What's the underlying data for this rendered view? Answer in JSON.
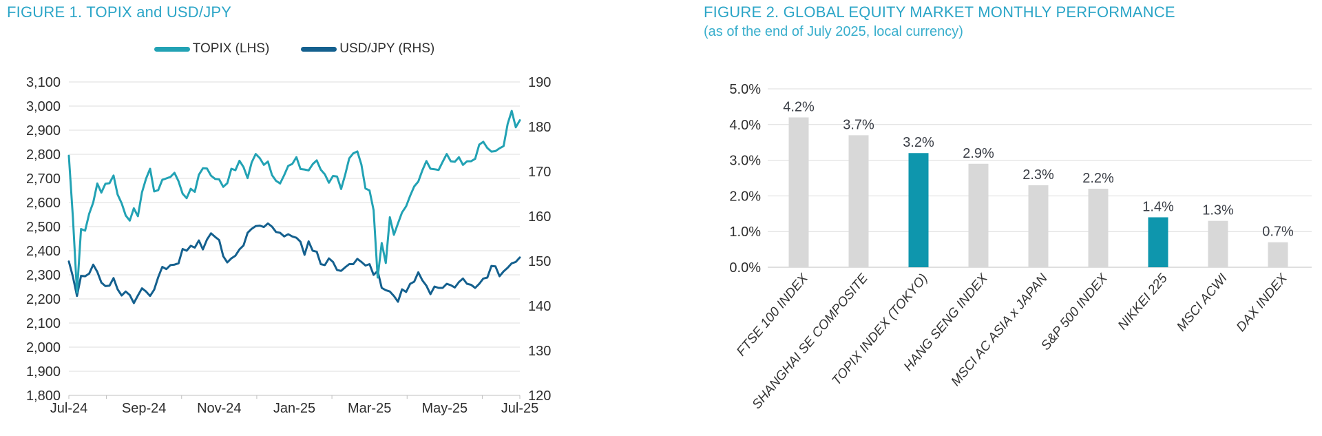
{
  "figure1": {
    "title": "FIGURE 1. TOPIX and USD/JPY",
    "legend": [
      {
        "label": "TOPIX (LHS)",
        "color": "#22A2B4"
      },
      {
        "label": "USD/JPY (RHS)",
        "color": "#14608E"
      }
    ]
  },
  "figure2": {
    "title": "FIGURE 2. GLOBAL EQUITY MARKET MONTHLY PERFORMANCE",
    "subtitle": "(as of the end of July 2025, local currency)"
  },
  "colors": {
    "title_teal": "#2BA5C7",
    "subtitle_teal": "#38AECC",
    "gridline": "#DCDCDC",
    "axis_line": "#BFBFBF",
    "axis_text": "#2E2E2E",
    "data_label_text": "#3A3E46",
    "topix_line": "#22A2B4",
    "usdjpy_line": "#14608E",
    "bar_gray": "#D8D8D8",
    "bar_teal": "#0E96AD"
  },
  "chart_data": [
    {
      "type": "line",
      "title": "FIGURE 1. TOPIX and USD/JPY",
      "legend_position": "top",
      "grid": true,
      "x_tick_labels": [
        "Jul-24",
        "Sep-24",
        "Nov-24",
        "Jan-25",
        "Mar-25",
        "May-25",
        "Jul-25"
      ],
      "y_left_axis": {
        "min": 1800,
        "max": 3100,
        "step": 100,
        "tick_labels": [
          "1,800",
          "1,900",
          "2,000",
          "2,100",
          "2,200",
          "2,300",
          "2,400",
          "2,500",
          "2,600",
          "2,700",
          "2,800",
          "2,900",
          "3,000",
          "3,100"
        ]
      },
      "y_right_axis": {
        "min": 120,
        "max": 190,
        "step": 10,
        "tick_labels": [
          "120",
          "130",
          "140",
          "150",
          "160",
          "170",
          "180",
          "190"
        ]
      },
      "series": [
        {
          "name": "USD/JPY (RHS)",
          "axis": "right",
          "color": "#14608E",
          "values": [
            149.9,
            146.5,
            142.2,
            146.7,
            146.6,
            147.2,
            149.2,
            147.6,
            145.2,
            144.4,
            144.5,
            146.2,
            143.7,
            142.3,
            143.2,
            142.4,
            140.6,
            142.3,
            143.9,
            143.2,
            142.2,
            143.6,
            146.4,
            148.7,
            148.2,
            149.1,
            149.2,
            149.5,
            152.7,
            152.3,
            153.4,
            153.0,
            154.6,
            152.6,
            154.8,
            156.2,
            155.4,
            154.7,
            151.1,
            149.7,
            150.6,
            151.2,
            152.6,
            153.5,
            156.3,
            157.2,
            157.8,
            157.9,
            157.6,
            158.4,
            157.7,
            156.5,
            156.3,
            155.5,
            156.0,
            155.5,
            155.2,
            154.3,
            151.4,
            154.4,
            152.3,
            152.1,
            149.3,
            149.1,
            150.6,
            149.8,
            148.0,
            147.8,
            148.6,
            149.3,
            149.3,
            150.5,
            149.8,
            149.0,
            149.3,
            146.9,
            147.8,
            144.0,
            143.5,
            143.2,
            142.2,
            140.9,
            143.7,
            143.1,
            144.9,
            145.4,
            147.5,
            145.7,
            144.5,
            142.6,
            144.3,
            144.0,
            144.0,
            144.9,
            144.6,
            144.1,
            145.3,
            146.1,
            144.9,
            144.7,
            144.0,
            144.9,
            146.1,
            146.3,
            148.9,
            148.8,
            146.6,
            147.7,
            148.5,
            149.5,
            149.8,
            150.8
          ]
        },
        {
          "name": "TOPIX (LHS)",
          "axis": "left",
          "color": "#22A2B4",
          "values": [
            2794,
            2537,
            2227,
            2490,
            2483,
            2553,
            2600,
            2679,
            2641,
            2678,
            2680,
            2712,
            2633,
            2597,
            2546,
            2525,
            2576,
            2543,
            2642,
            2699,
            2740,
            2646,
            2651,
            2694,
            2700,
            2706,
            2723,
            2688,
            2637,
            2618,
            2657,
            2644,
            2715,
            2742,
            2741,
            2711,
            2698,
            2696,
            2665,
            2680,
            2740,
            2734,
            2773,
            2747,
            2701,
            2766,
            2801,
            2784,
            2756,
            2770,
            2714,
            2690,
            2679,
            2713,
            2752,
            2760,
            2788,
            2739,
            2737,
            2733,
            2759,
            2775,
            2736,
            2717,
            2682,
            2710,
            2708,
            2656,
            2715,
            2783,
            2804,
            2812,
            2757,
            2658,
            2650,
            2568,
            2289,
            2432,
            2349,
            2539,
            2466,
            2513,
            2559,
            2584,
            2628,
            2667,
            2687,
            2733,
            2772,
            2740,
            2738,
            2735,
            2769,
            2801,
            2771,
            2769,
            2788,
            2756,
            2771,
            2771,
            2781,
            2840,
            2852,
            2826,
            2811,
            2813,
            2825,
            2834,
            2926,
            2980,
            2912,
            2941
          ]
        }
      ]
    },
    {
      "type": "bar",
      "title": "FIGURE 2. GLOBAL EQUITY MARKET MONTHLY PERFORMANCE",
      "subtitle": "(as of the end of July 2025, local currency)",
      "grid": true,
      "ylim": [
        0,
        5
      ],
      "y_tick_labels": [
        "0.0%",
        "1.0%",
        "2.0%",
        "3.0%",
        "4.0%",
        "5.0%"
      ],
      "categories": [
        "FTSE 100 INDEX",
        "SHANGHAI SE COMPOSITE",
        "TOPIX INDEX (TOKYO)",
        "HANG SENG INDEX",
        "MSCI AC ASIA x JAPAN",
        "S&P 500 INDEX",
        "NIKKEI 225",
        "MSCI ACWI",
        "DAX INDEX"
      ],
      "values": [
        4.2,
        3.7,
        3.2,
        2.9,
        2.3,
        2.2,
        1.4,
        1.3,
        0.7
      ],
      "data_labels": [
        "4.2%",
        "3.7%",
        "3.2%",
        "2.9%",
        "2.3%",
        "2.2%",
        "1.4%",
        "1.3%",
        "0.7%"
      ],
      "bar_color": "#D8D8D8",
      "highlight_color": "#0E96AD",
      "highlight_indices": [
        2,
        6
      ]
    }
  ]
}
